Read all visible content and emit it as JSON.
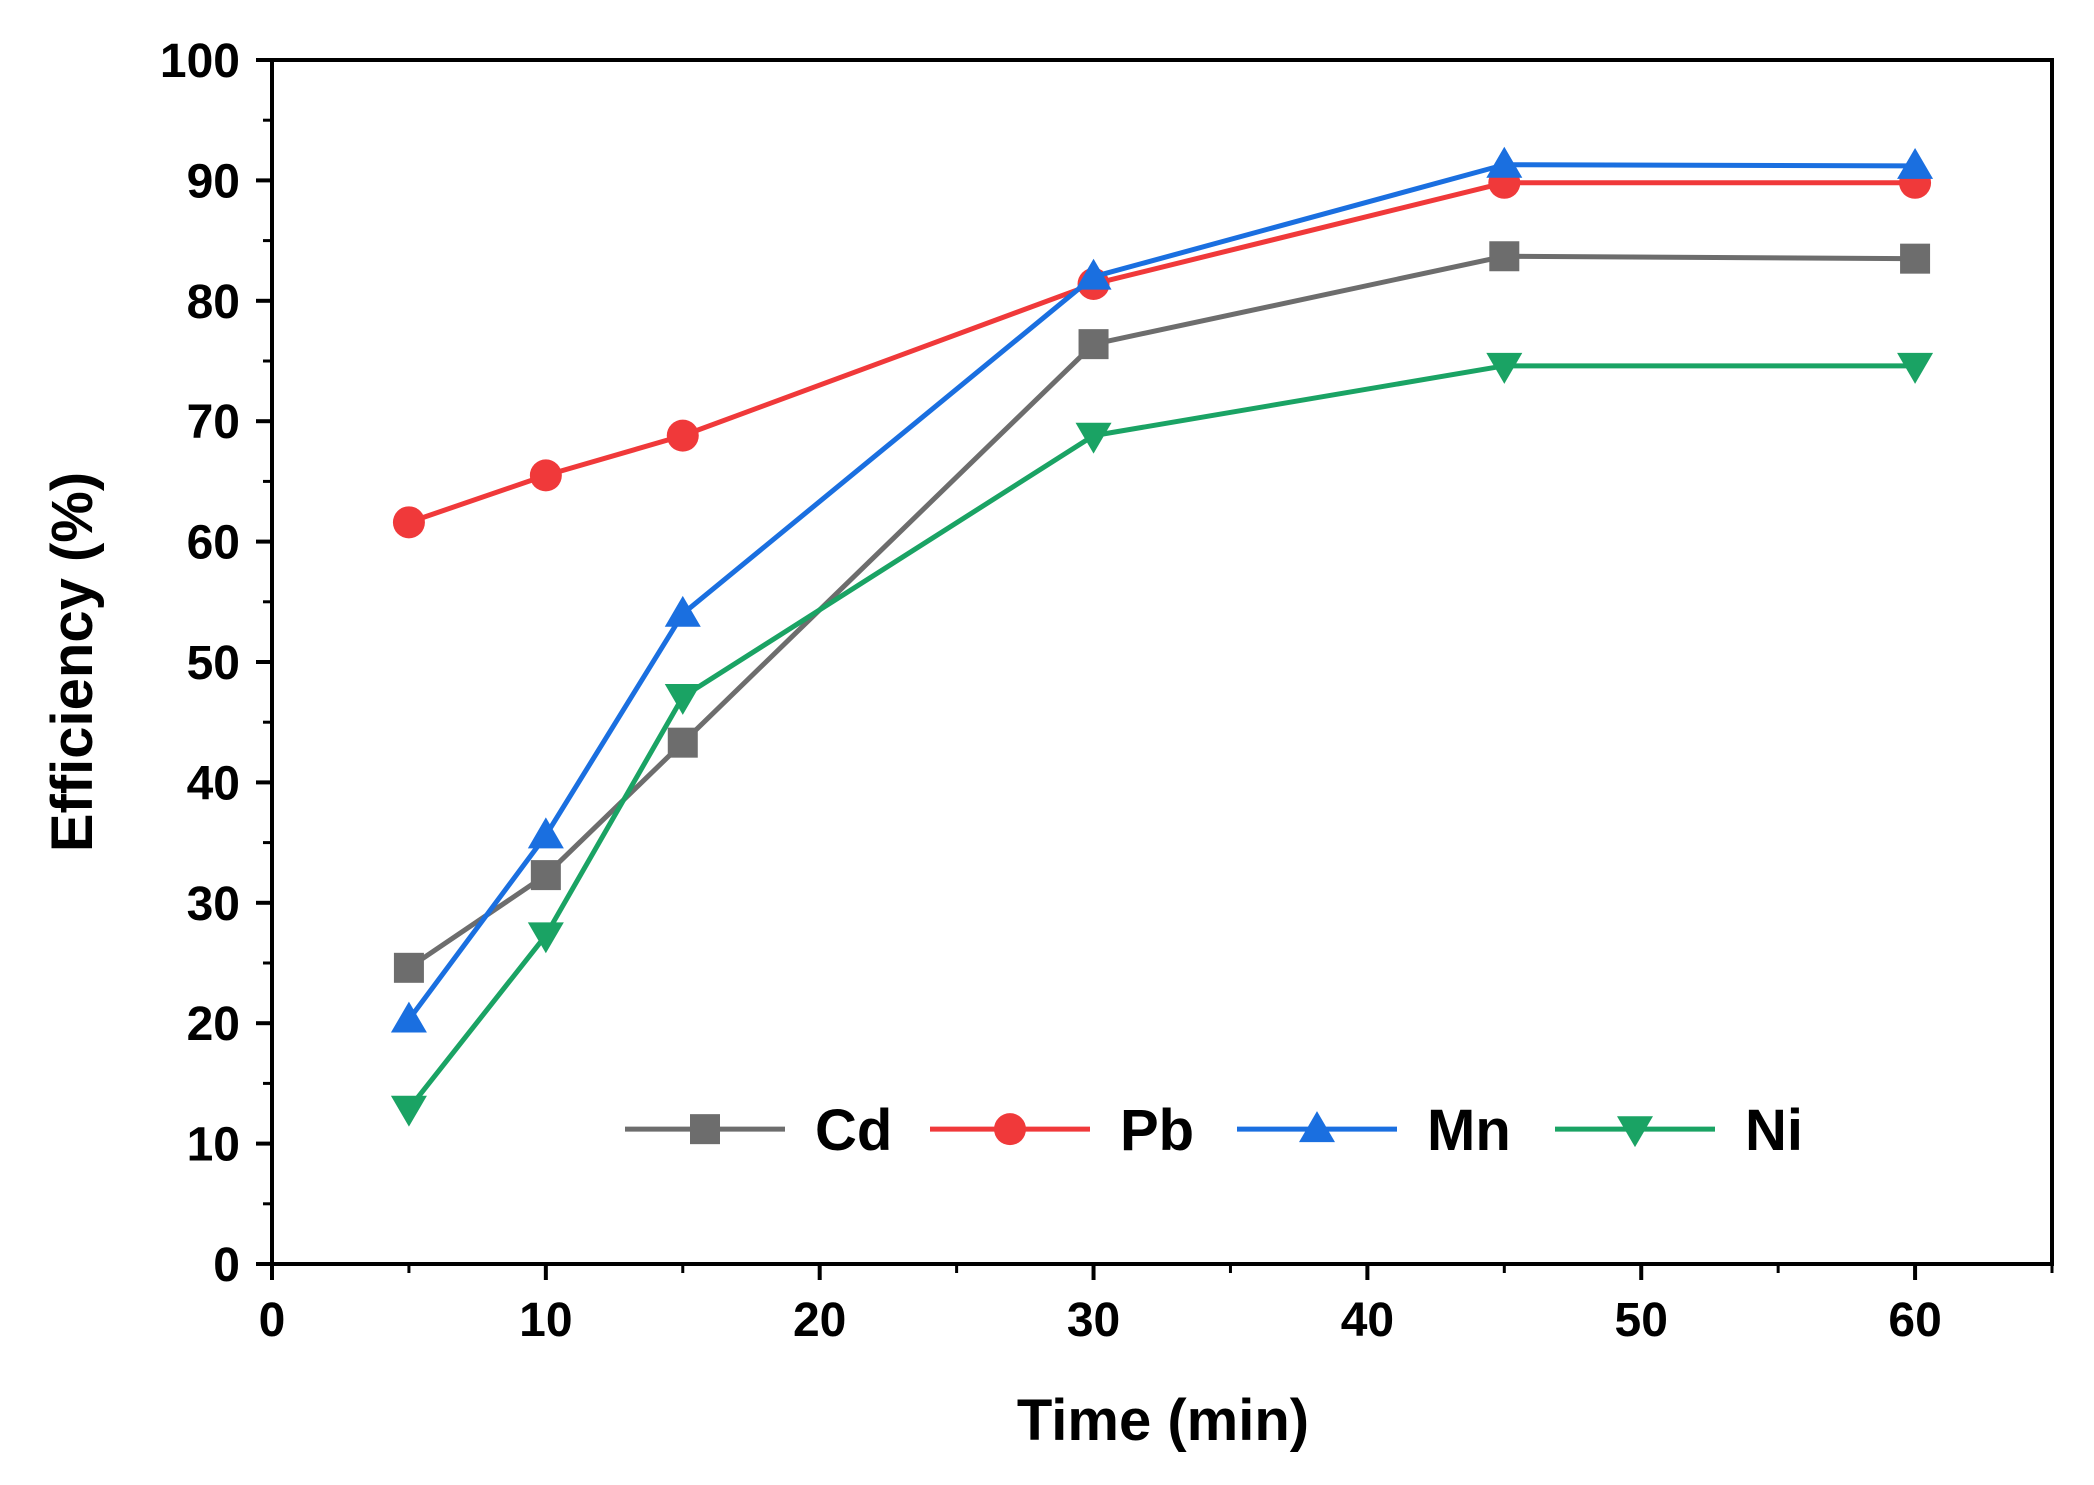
{
  "chart_data": {
    "type": "line",
    "title": "",
    "xlabel": "Time (min)",
    "ylabel": "Efficiency (%)",
    "xlim": [
      0,
      65
    ],
    "ylim": [
      0,
      100
    ],
    "x_ticks": [
      0,
      10,
      20,
      30,
      40,
      50,
      60
    ],
    "y_ticks": [
      0,
      10,
      20,
      30,
      40,
      50,
      60,
      70,
      80,
      90,
      100
    ],
    "x_tick_labels": [
      "0",
      "10",
      "20",
      "30",
      "40",
      "50",
      "60"
    ],
    "y_tick_labels": [
      "0",
      "10",
      "20",
      "30",
      "40",
      "50",
      "60",
      "70",
      "80",
      "90",
      "100"
    ],
    "x_minor_step": 5,
    "y_minor_step": 5,
    "grid": false,
    "legend": {
      "placement": "bottom-right, single row",
      "entries": [
        "Cd",
        "Pb",
        "Mn",
        "Ni"
      ]
    },
    "x": [
      5,
      10,
      15,
      30,
      45,
      60
    ],
    "series": [
      {
        "name": "Cd",
        "color": "#6d6d6d",
        "marker": "square",
        "values": [
          24.6,
          32.3,
          43.3,
          76.4,
          83.7,
          83.5
        ]
      },
      {
        "name": "Pb",
        "color": "#f0393a",
        "marker": "circle",
        "values": [
          61.6,
          65.5,
          68.8,
          81.4,
          89.8,
          89.8
        ]
      },
      {
        "name": "Mn",
        "color": "#1a6fe0",
        "marker": "triangle-up",
        "values": [
          20.3,
          35.6,
          54.0,
          82.0,
          91.3,
          91.2
        ]
      },
      {
        "name": "Ni",
        "color": "#1aa364",
        "marker": "triangle-down",
        "values": [
          12.9,
          27.3,
          47.1,
          68.8,
          74.6,
          74.6
        ]
      }
    ]
  }
}
